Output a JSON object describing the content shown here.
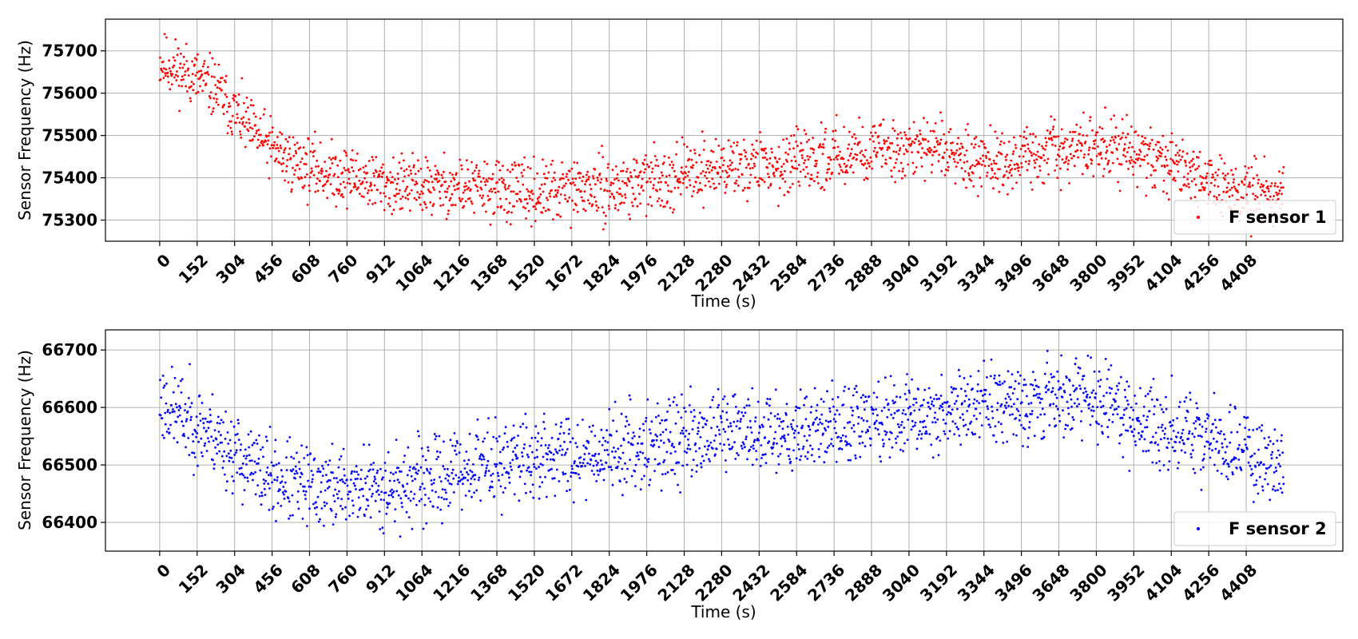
{
  "chart_data": [
    {
      "type": "scatter",
      "xlabel": "Time (s)",
      "ylabel": "Sensor Frequency (Hz)",
      "xticks": [
        0,
        152,
        304,
        456,
        608,
        760,
        912,
        1064,
        1216,
        1368,
        1520,
        1672,
        1824,
        1976,
        2128,
        2280,
        2432,
        2584,
        2736,
        2888,
        3040,
        3192,
        3344,
        3496,
        3648,
        3800,
        3952,
        4104,
        4256,
        4408
      ],
      "yticks": [
        75300,
        75400,
        75500,
        75600,
        75700
      ],
      "xlim": [
        -220,
        4800
      ],
      "ylim": [
        75250,
        75775
      ],
      "grid": true,
      "legend_position": "lower-right",
      "color": "#ff0000",
      "series": [
        {
          "name": "F sensor 1",
          "x": [
            0,
            76,
            152,
            228,
            304,
            380,
            456,
            532,
            608,
            684,
            760,
            836,
            912,
            988,
            1064,
            1140,
            1216,
            1292,
            1368,
            1444,
            1520,
            1596,
            1672,
            1748,
            1824,
            1900,
            1976,
            2052,
            2128,
            2204,
            2280,
            2356,
            2432,
            2508,
            2584,
            2660,
            2736,
            2812,
            2888,
            2964,
            3040,
            3116,
            3192,
            3268,
            3344,
            3420,
            3496,
            3572,
            3648,
            3724,
            3800,
            3876,
            3952,
            4028,
            4104,
            4180,
            4256,
            4332,
            4408,
            4484,
            4560
          ],
          "y": [
            75675,
            75655,
            75635,
            75610,
            75555,
            75505,
            75470,
            75440,
            75425,
            75410,
            75405,
            75395,
            75385,
            75380,
            75380,
            75378,
            75376,
            75375,
            75372,
            75368,
            75362,
            75365,
            75372,
            75375,
            75372,
            75380,
            75390,
            75400,
            75410,
            75420,
            75425,
            75428,
            75430,
            75428,
            75430,
            75440,
            75455,
            75462,
            75462,
            75470,
            75472,
            75470,
            75465,
            75455,
            75445,
            75440,
            75438,
            75452,
            75462,
            75470,
            75478,
            75468,
            75455,
            75442,
            75432,
            75418,
            75395,
            75375,
            75365,
            75360,
            75358
          ],
          "spread": 50,
          "seed": 11
        }
      ]
    },
    {
      "type": "scatter",
      "xlabel": "Time (s)",
      "ylabel": "Sensor Frequency (Hz)",
      "xticks": [
        0,
        152,
        304,
        456,
        608,
        760,
        912,
        1064,
        1216,
        1368,
        1520,
        1672,
        1824,
        1976,
        2128,
        2280,
        2432,
        2584,
        2736,
        2888,
        3040,
        3192,
        3344,
        3496,
        3648,
        3800,
        3952,
        4104,
        4256,
        4408
      ],
      "yticks": [
        66400,
        66500,
        66600,
        66700
      ],
      "xlim": [
        -220,
        4800
      ],
      "ylim": [
        66350,
        66735
      ],
      "grid": true,
      "legend_position": "lower-right",
      "color": "#0000ff",
      "series": [
        {
          "name": "F sensor 2",
          "x": [
            0,
            76,
            152,
            228,
            304,
            380,
            456,
            532,
            608,
            684,
            760,
            836,
            912,
            988,
            1064,
            1140,
            1216,
            1292,
            1368,
            1444,
            1520,
            1596,
            1672,
            1748,
            1824,
            1900,
            1976,
            2052,
            2128,
            2204,
            2280,
            2356,
            2432,
            2508,
            2584,
            2660,
            2736,
            2812,
            2888,
            2964,
            3040,
            3116,
            3192,
            3268,
            3344,
            3420,
            3496,
            3572,
            3648,
            3724,
            3800,
            3876,
            3952,
            4028,
            4104,
            4180,
            4256,
            4332,
            4408,
            4484,
            4560
          ],
          "y": [
            66610,
            66590,
            66570,
            66550,
            66520,
            66495,
            66478,
            66468,
            66462,
            66460,
            66460,
            66460,
            66462,
            66465,
            66468,
            66478,
            66490,
            66500,
            66505,
            66508,
            66510,
            66515,
            66520,
            66522,
            66525,
            66530,
            66535,
            66540,
            66545,
            66550,
            66553,
            66556,
            66558,
            66560,
            66562,
            66565,
            66568,
            66570,
            66575,
            66580,
            66585,
            66590,
            66595,
            66600,
            66605,
            66610,
            66615,
            66618,
            66620,
            66620,
            66615,
            66600,
            66585,
            66570,
            66560,
            66550,
            66540,
            66530,
            66520,
            66510,
            66505
          ],
          "spread": 50,
          "seed": 23
        }
      ]
    }
  ]
}
